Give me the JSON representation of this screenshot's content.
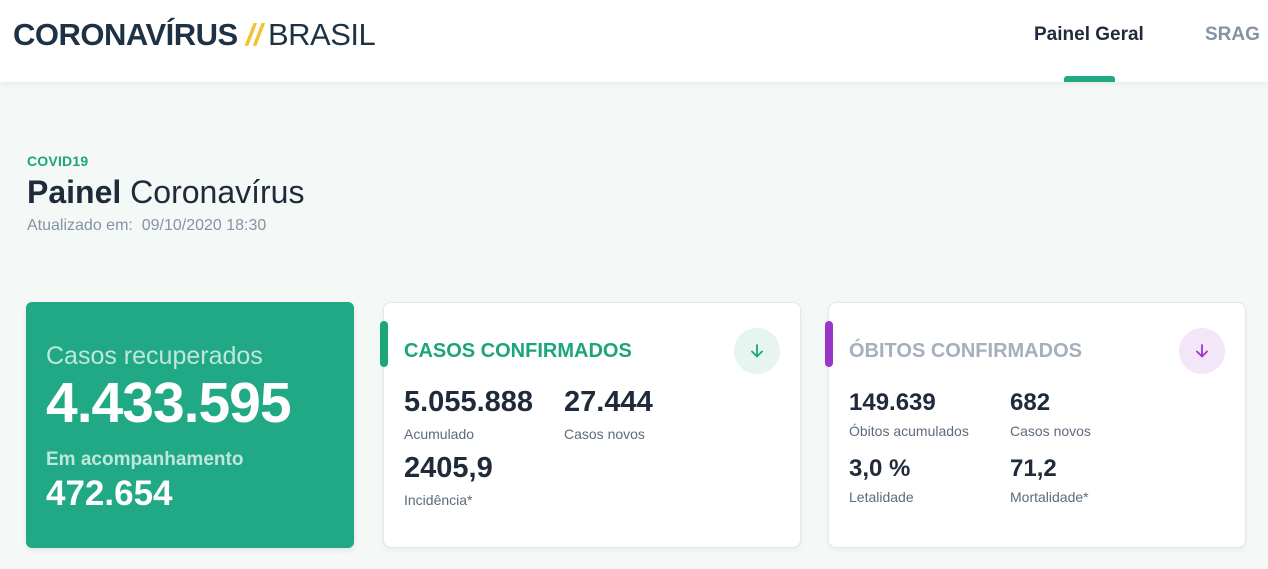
{
  "header": {
    "logo_main": "CORONAVÍRUS",
    "logo_sep": "//",
    "logo_sub": "BRASIL",
    "nav": [
      {
        "label": "Painel Geral",
        "active": true
      },
      {
        "label": "SRAG",
        "active": false
      }
    ]
  },
  "page": {
    "eyebrow": "COVID19",
    "title_bold": "Painel",
    "title_rest": "Coronavírus",
    "updated_label": "Atualizado em:",
    "updated_value": "09/10/2020 18:30"
  },
  "recovered_card": {
    "label": "Casos recuperados",
    "value": "4.433.595",
    "follow_label": "Em acompanhamento",
    "follow_value": "472.654",
    "color": "#21a884"
  },
  "cases_card": {
    "title": "CASOS CONFIRMADOS",
    "accent_color": "#1aa57d",
    "arrow_icon": "arrow-down-icon",
    "stats": {
      "accumulated_value": "5.055.888",
      "accumulated_label": "Acumulado",
      "new_value": "27.444",
      "new_label": "Casos novos",
      "incidence_value": "2405,9",
      "incidence_label": "Incidência*"
    }
  },
  "deaths_card": {
    "title": "ÓBITOS CONFIRMADOS",
    "accent_color": "#9b35c9",
    "arrow_icon": "arrow-down-icon",
    "stats": {
      "accumulated_value": "149.639",
      "accumulated_label": "Óbitos acumulados",
      "new_value": "682",
      "new_label": "Casos novos",
      "lethality_value": "3,0 %",
      "lethality_label": "Letalidade",
      "mortality_value": "71,2",
      "mortality_label": "Mortalidade*"
    }
  }
}
